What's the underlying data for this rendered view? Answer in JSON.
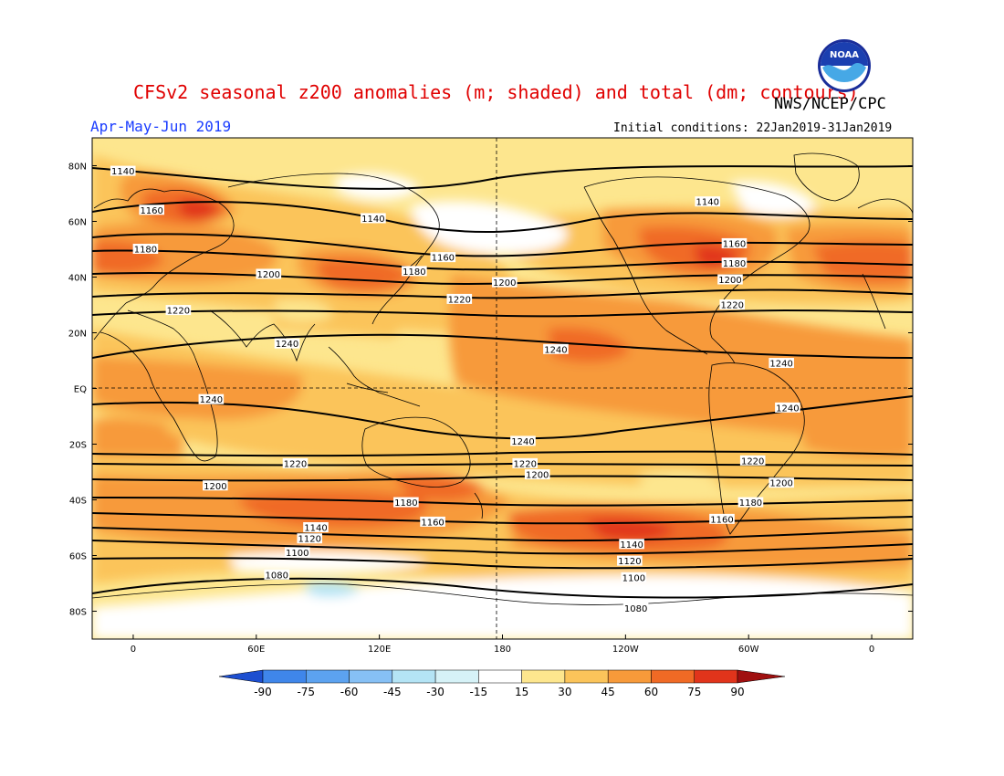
{
  "header": {
    "title": "CFSv2 seasonal z200 anomalies (m; shaded) and total (dm; contours)",
    "agency": "NWS/NCEP/CPC",
    "season": "Apr-May-Jun 2019",
    "initial_conditions": "Initial conditions: 22Jan2019-31Jan2019",
    "logo_text": "NOAA"
  },
  "axes": {
    "lat_ticks": [
      {
        "label": "80N",
        "lat": 80
      },
      {
        "label": "60N",
        "lat": 60
      },
      {
        "label": "40N",
        "lat": 40
      },
      {
        "label": "20N",
        "lat": 20
      },
      {
        "label": "EQ",
        "lat": 0
      },
      {
        "label": "20S",
        "lat": -20
      },
      {
        "label": "40S",
        "lat": -40
      },
      {
        "label": "60S",
        "lat": -60
      },
      {
        "label": "80S",
        "lat": -80
      }
    ],
    "lon_ticks": [
      {
        "label": "0",
        "lon": 0
      },
      {
        "label": "60E",
        "lon": 60
      },
      {
        "label": "120E",
        "lon": 120
      },
      {
        "label": "180",
        "lon": 180
      },
      {
        "label": "120W",
        "lon": 240
      },
      {
        "label": "60W",
        "lon": 300
      },
      {
        "label": "0",
        "lon": 360
      }
    ]
  },
  "colorbar": {
    "labels": [
      "-90",
      "-75",
      "-60",
      "-45",
      "-30",
      "-15",
      "15",
      "30",
      "45",
      "60",
      "75",
      "90"
    ],
    "colors": [
      "#2f6fe0",
      "#3f86ea",
      "#5ca2f0",
      "#86c0f5",
      "#b4e4f5",
      "#ffffff",
      "#fde68e",
      "#fbc45a",
      "#f79a3a",
      "#f06a25",
      "#e1341b",
      "#bf1b13"
    ],
    "end_low_color": "#1d4fd0",
    "end_high_color": "#a01010"
  },
  "contour_labels": [
    {
      "text": "1140",
      "lon": -5,
      "lat": 78
    },
    {
      "text": "1160",
      "lon": 9,
      "lat": 64
    },
    {
      "text": "1180",
      "lon": 6,
      "lat": 50
    },
    {
      "text": "1200",
      "lon": 66,
      "lat": 41
    },
    {
      "text": "1220",
      "lon": 22,
      "lat": 28
    },
    {
      "text": "1240",
      "lon": 75,
      "lat": 16
    },
    {
      "text": "1240",
      "lon": 38,
      "lat": -4
    },
    {
      "text": "1140",
      "lon": 117,
      "lat": 61
    },
    {
      "text": "1160",
      "lon": 151,
      "lat": 47
    },
    {
      "text": "1180",
      "lon": 137,
      "lat": 42
    },
    {
      "text": "1200",
      "lon": 181,
      "lat": 38
    },
    {
      "text": "1220",
      "lon": 159,
      "lat": 32
    },
    {
      "text": "1240",
      "lon": 206,
      "lat": 14
    },
    {
      "text": "1240",
      "lon": 190,
      "lat": -19
    },
    {
      "text": "1220",
      "lon": 79,
      "lat": -27
    },
    {
      "text": "1200",
      "lon": 40,
      "lat": -35
    },
    {
      "text": "1180",
      "lon": 133,
      "lat": -41
    },
    {
      "text": "1160",
      "lon": 146,
      "lat": -48
    },
    {
      "text": "1140",
      "lon": 89,
      "lat": -50
    },
    {
      "text": "1120",
      "lon": 86,
      "lat": -54
    },
    {
      "text": "1100",
      "lon": 80,
      "lat": -59
    },
    {
      "text": "1080",
      "lon": 70,
      "lat": -67
    },
    {
      "text": "1220",
      "lon": 191,
      "lat": -27
    },
    {
      "text": "1200",
      "lon": 197,
      "lat": -31
    },
    {
      "text": "1140",
      "lon": 243,
      "lat": -56
    },
    {
      "text": "1120",
      "lon": 242,
      "lat": -62
    },
    {
      "text": "1100",
      "lon": 244,
      "lat": -68
    },
    {
      "text": "1080",
      "lon": 245,
      "lat": -79
    },
    {
      "text": "1140",
      "lon": 280,
      "lat": 67
    },
    {
      "text": "1160",
      "lon": 293,
      "lat": 52
    },
    {
      "text": "1180",
      "lon": 293,
      "lat": 45
    },
    {
      "text": "1200",
      "lon": 291,
      "lat": 39
    },
    {
      "text": "1220",
      "lon": 292,
      "lat": 30
    },
    {
      "text": "1240",
      "lon": 316,
      "lat": 9
    },
    {
      "text": "1240",
      "lon": 319,
      "lat": -7
    },
    {
      "text": "1220",
      "lon": 302,
      "lat": -26
    },
    {
      "text": "1200",
      "lon": 316,
      "lat": -34
    },
    {
      "text": "1180",
      "lon": 301,
      "lat": -41
    },
    {
      "text": "1160",
      "lon": 287,
      "lat": -47
    }
  ]
}
